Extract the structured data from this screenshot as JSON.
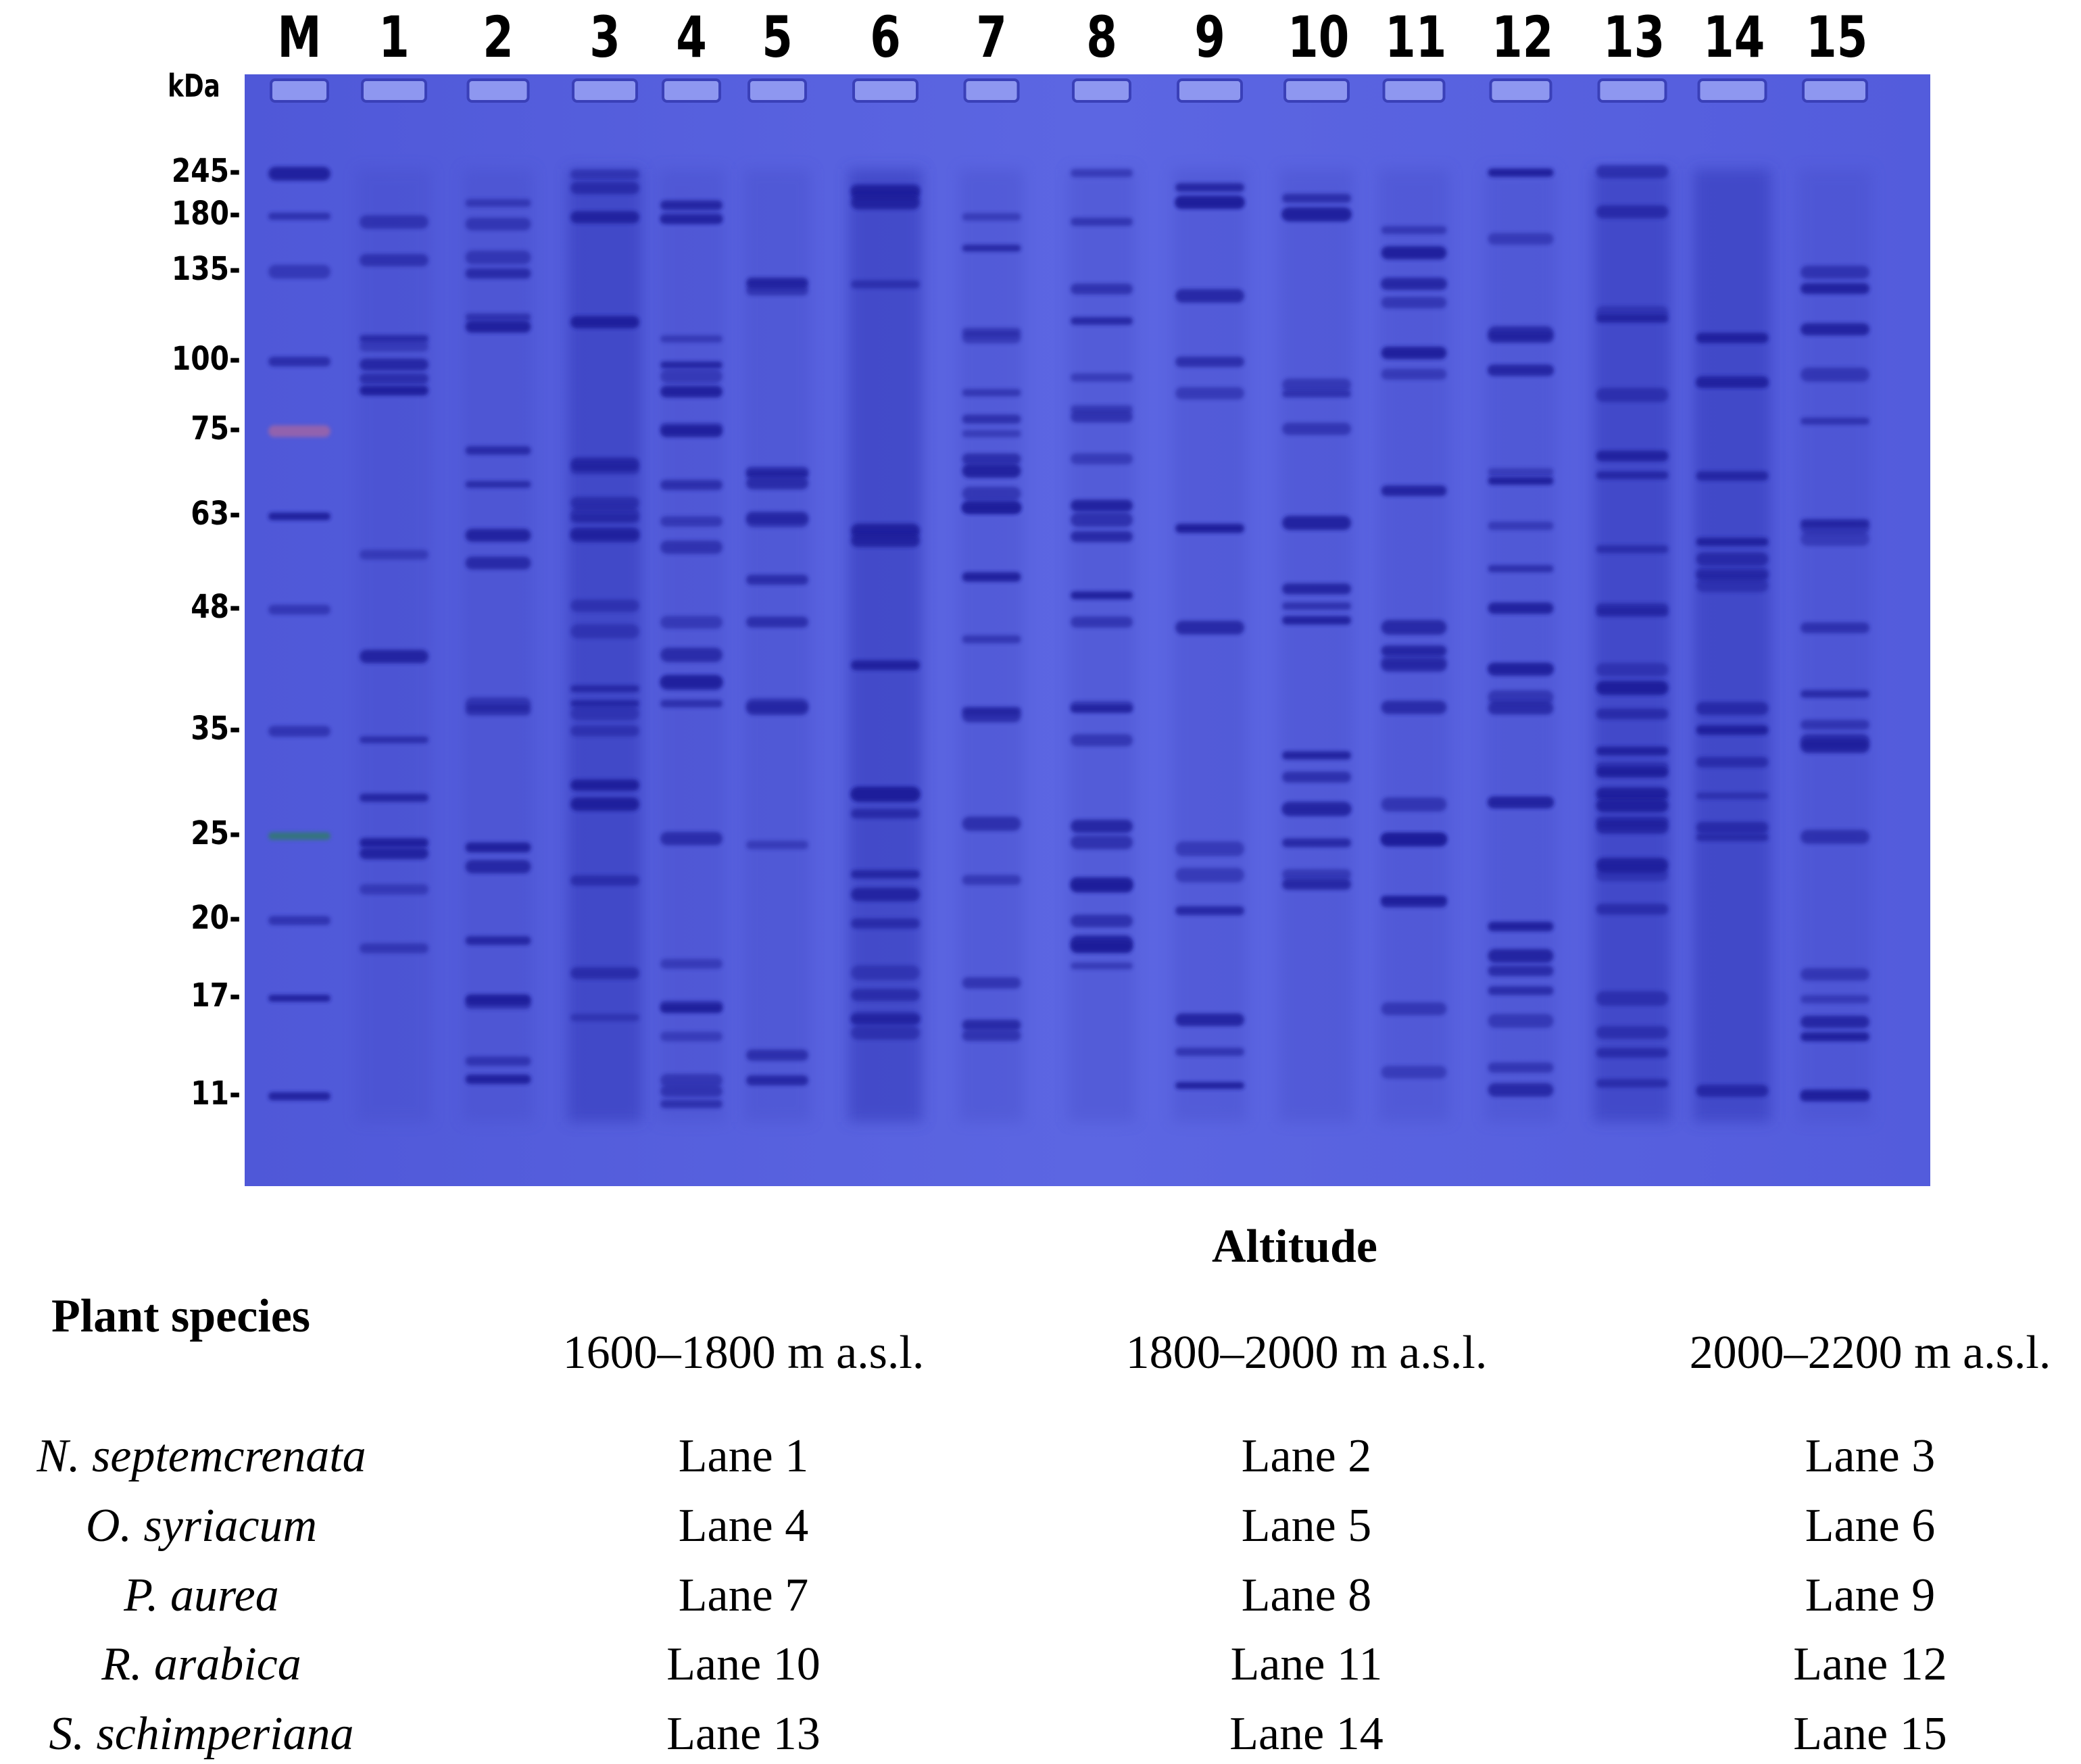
{
  "lanes": [
    "M",
    "1",
    "2",
    "3",
    "4",
    "5",
    "6",
    "7",
    "8",
    "9",
    "10",
    "11",
    "12",
    "13",
    "14",
    "15"
  ],
  "mw_unit": "kDa",
  "mw_markers": [
    "245-",
    "180-",
    "135-",
    "100-",
    "75-",
    "63-",
    "48-",
    "35-",
    "25-",
    "20-",
    "17-",
    "11-"
  ],
  "colors": {
    "gel_background": "#5a62e0",
    "band": "#1c1f9a",
    "marker_red": "#c46a8e",
    "marker_green": "#2f7a6a"
  },
  "legend": {
    "altitude_heading": "Altitude",
    "species_heading": "Plant species",
    "altitude_ranges": [
      "1600–1800 m a.s.l.",
      "1800–2000 m a.s.l.",
      "2000–2200 m a.s.l."
    ],
    "rows": [
      {
        "species": "N. septemcrenata",
        "lanes": [
          "Lane 1",
          "Lane 2",
          "Lane 3"
        ]
      },
      {
        "species": "O. syriacum",
        "lanes": [
          "Lane 4",
          "Lane 5",
          "Lane 6"
        ]
      },
      {
        "species": "P. aurea",
        "lanes": [
          "Lane 7",
          "Lane 8",
          "Lane 9"
        ]
      },
      {
        "species": "R. arabica",
        "lanes": [
          "Lane 10",
          "Lane 11",
          "Lane 12"
        ]
      },
      {
        "species": "S. schimperiana",
        "lanes": [
          "Lane 13",
          "Lane 14",
          "Lane 15"
        ]
      }
    ]
  }
}
